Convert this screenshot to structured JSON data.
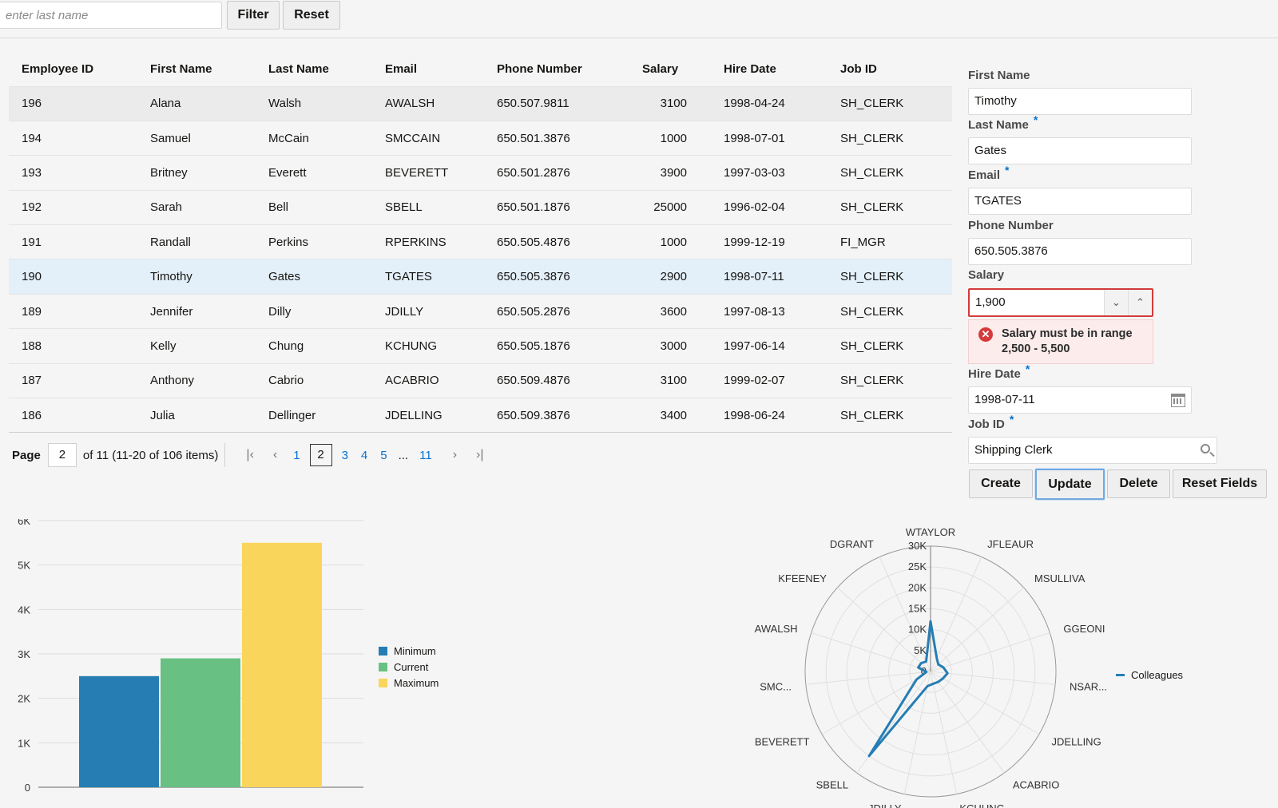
{
  "filter": {
    "placeholder": "enter last name",
    "filter_label": "Filter",
    "reset_label": "Reset"
  },
  "table": {
    "columns": [
      "Employee ID",
      "First Name",
      "Last Name",
      "Email",
      "Phone Number",
      "Salary",
      "Hire Date",
      "Job ID"
    ],
    "rows": [
      [
        "196",
        "Alana",
        "Walsh",
        "AWALSH",
        "650.507.9811",
        "3100",
        "1998-04-24",
        "SH_CLERK"
      ],
      [
        "194",
        "Samuel",
        "McCain",
        "SMCCAIN",
        "650.501.3876",
        "1000",
        "1998-07-01",
        "SH_CLERK"
      ],
      [
        "193",
        "Britney",
        "Everett",
        "BEVERETT",
        "650.501.2876",
        "3900",
        "1997-03-03",
        "SH_CLERK"
      ],
      [
        "192",
        "Sarah",
        "Bell",
        "SBELL",
        "650.501.1876",
        "25000",
        "1996-02-04",
        "SH_CLERK"
      ],
      [
        "191",
        "Randall",
        "Perkins",
        "RPERKINS",
        "650.505.4876",
        "1000",
        "1999-12-19",
        "FI_MGR"
      ],
      [
        "190",
        "Timothy",
        "Gates",
        "TGATES",
        "650.505.3876",
        "2900",
        "1998-07-11",
        "SH_CLERK"
      ],
      [
        "189",
        "Jennifer",
        "Dilly",
        "JDILLY",
        "650.505.2876",
        "3600",
        "1997-08-13",
        "SH_CLERK"
      ],
      [
        "188",
        "Kelly",
        "Chung",
        "KCHUNG",
        "650.505.1876",
        "3000",
        "1997-06-14",
        "SH_CLERK"
      ],
      [
        "187",
        "Anthony",
        "Cabrio",
        "ACABRIO",
        "650.509.4876",
        "3100",
        "1999-02-07",
        "SH_CLERK"
      ],
      [
        "186",
        "Julia",
        "Dellinger",
        "JDELLING",
        "650.509.3876",
        "3400",
        "1998-06-24",
        "SH_CLERK"
      ]
    ],
    "hover_row": 0,
    "selected_row": 5
  },
  "paging": {
    "label": "Page",
    "current": "2",
    "summary": "of 11 (11-20 of 106 items)",
    "pages": [
      "1",
      "2",
      "3",
      "4",
      "5",
      "...",
      "11"
    ],
    "first_icon": "first-page-icon",
    "prev_icon": "previous-page-icon",
    "next_icon": "next-page-icon",
    "last_icon": "last-page-icon"
  },
  "form": {
    "first_name_label": "First Name",
    "first_name": "Timothy",
    "last_name_label": "Last Name",
    "last_name": "Gates",
    "email_label": "Email",
    "email": "TGATES",
    "phone_label": "Phone Number",
    "phone": "650.505.3876",
    "salary_label": "Salary",
    "salary": "1,900",
    "salary_error_line1": "Salary must be in range",
    "salary_error_line2": "2,500 - 5,500",
    "hire_date_label": "Hire Date",
    "hire_date": "1998-07-11",
    "job_id_label": "Job ID",
    "job_id": "Shipping Clerk",
    "required_mark": "*",
    "buttons": {
      "create": "Create",
      "update": "Update",
      "delete": "Delete",
      "reset": "Reset Fields"
    }
  },
  "chart_data": [
    {
      "type": "bar",
      "categories": [
        ""
      ],
      "series": [
        {
          "name": "Minimum",
          "values": [
            2500
          ],
          "color": "#267db3"
        },
        {
          "name": "Current",
          "values": [
            2900
          ],
          "color": "#68c182"
        },
        {
          "name": "Maximum",
          "values": [
            5500
          ],
          "color": "#fad55c"
        }
      ],
      "ylim": [
        0,
        6000
      ],
      "yticks": [
        "0",
        "1K",
        "2K",
        "3K",
        "4K",
        "5K",
        "6K"
      ],
      "grid": true,
      "legend": "right"
    },
    {
      "type": "radar",
      "categories": [
        "WTAYLOR",
        "JFLEAUR",
        "MSULLIVA",
        "GGEONI",
        "NSAR...",
        "JDELLING",
        "ACABRIO",
        "KCHUNG",
        "JDILLY",
        "SBELL",
        "BEVERETT",
        "SMC...",
        "AWALSH",
        "KFEENEY",
        "DGRANT"
      ],
      "series": [
        {
          "name": "Colleagues",
          "color": "#267db3",
          "values": [
            12000,
            3600,
            2500,
            3200,
            4100,
            3400,
            3100,
            3000,
            3600,
            25000,
            3900,
            1000,
            3100,
            3000,
            2600
          ]
        }
      ],
      "ylim": [
        0,
        30000
      ],
      "rticks": [
        "0",
        "5K",
        "10K",
        "15K",
        "20K",
        "25K",
        "30K"
      ],
      "legend": "right"
    }
  ]
}
